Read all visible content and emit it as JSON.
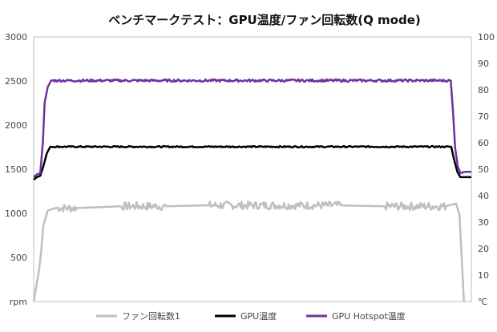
{
  "chart_data": {
    "type": "line",
    "title": "ベンチマークテスト：GPU温度/ファン回転数(Q mode)",
    "left_axis": {
      "unit": "rpm",
      "range": [
        0,
        3000
      ],
      "ticks": [
        "500",
        "1000",
        "1500",
        "2000",
        "2500",
        "3000"
      ]
    },
    "right_axis": {
      "unit": "℃",
      "range": [
        0,
        100
      ],
      "ticks": [
        "10",
        "20",
        "30",
        "40",
        "50",
        "60",
        "70",
        "80",
        "90",
        "100"
      ]
    },
    "grid": false,
    "legend_position": "bottom",
    "x_range": [
      0,
      100
    ],
    "series": [
      {
        "name": "ファン回転数1",
        "axis": "left",
        "color": "#bfbfbf",
        "points": [
          [
            0,
            0
          ],
          [
            1.2,
            350
          ],
          [
            1.7,
            560
          ],
          [
            2.2,
            860
          ],
          [
            3.2,
            1030
          ],
          [
            5,
            1060
          ],
          [
            10,
            1060
          ],
          [
            20,
            1080
          ],
          [
            30,
            1080
          ],
          [
            40,
            1090
          ],
          [
            50,
            1090
          ],
          [
            60,
            1090
          ],
          [
            70,
            1090
          ],
          [
            80,
            1080
          ],
          [
            90,
            1080
          ],
          [
            94,
            1080
          ],
          [
            96.5,
            1110
          ],
          [
            97.3,
            980
          ],
          [
            98.3,
            0
          ]
        ]
      },
      {
        "name": "GPU温度",
        "axis": "right",
        "color": "#000000",
        "points": [
          [
            0,
            46
          ],
          [
            0.7,
            47
          ],
          [
            1.5,
            47.5
          ],
          [
            2.2,
            51
          ],
          [
            3,
            56
          ],
          [
            3.8,
            58.5
          ],
          [
            10,
            58.5
          ],
          [
            20,
            58.5
          ],
          [
            40,
            58.5
          ],
          [
            50,
            58.5
          ],
          [
            60,
            58.5
          ],
          [
            70,
            58.5
          ],
          [
            80,
            58.5
          ],
          [
            90,
            58.5
          ],
          [
            95.4,
            58.5
          ],
          [
            96,
            54
          ],
          [
            96.8,
            49
          ],
          [
            97.5,
            47
          ],
          [
            98.5,
            47
          ],
          [
            100,
            47
          ]
        ]
      },
      {
        "name": "GPU Hotspot温度",
        "axis": "right",
        "color": "#7030a0",
        "points": [
          [
            0,
            47
          ],
          [
            0.7,
            48
          ],
          [
            1.5,
            48.5
          ],
          [
            2.1,
            60
          ],
          [
            2.5,
            75
          ],
          [
            3.2,
            81
          ],
          [
            4,
            83.5
          ],
          [
            20,
            83.5
          ],
          [
            40,
            83.5
          ],
          [
            60,
            83.5
          ],
          [
            80,
            83.5
          ],
          [
            95.3,
            83.5
          ],
          [
            95.8,
            72
          ],
          [
            96.3,
            58
          ],
          [
            96.9,
            51
          ],
          [
            97.5,
            48.5
          ],
          [
            98.5,
            49
          ],
          [
            100,
            49
          ]
        ]
      }
    ]
  }
}
